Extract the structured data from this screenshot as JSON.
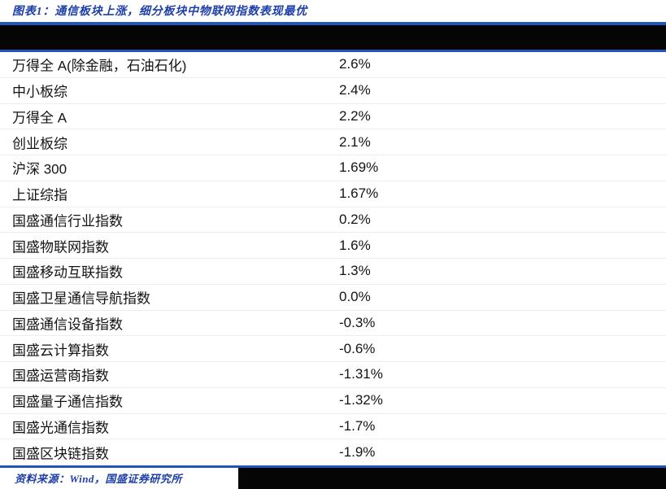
{
  "figure": {
    "title": "图表1：通信板块上涨，细分板块中物联网指数表现最优",
    "source": "资料来源：Wind，国盛证券研究所"
  },
  "table": {
    "rows": [
      {
        "name": "万得全 A(除金融，石油石化)",
        "value": "2.6%"
      },
      {
        "name": "中小板综",
        "value": "2.4%"
      },
      {
        "name": "万得全 A",
        "value": "2.2%"
      },
      {
        "name": "创业板综",
        "value": "2.1%"
      },
      {
        "name": "沪深 300",
        "value": "1.69%"
      },
      {
        "name": "上证综指",
        "value": "1.67%"
      },
      {
        "name": "国盛通信行业指数",
        "value": "0.2%"
      },
      {
        "name": "国盛物联网指数",
        "value": "1.6%"
      },
      {
        "name": "国盛移动互联指数",
        "value": "1.3%"
      },
      {
        "name": "国盛卫星通信导航指数",
        "value": "0.0%"
      },
      {
        "name": "国盛通信设备指数",
        "value": "-0.3%"
      },
      {
        "name": "国盛云计算指数",
        "value": "-0.6%"
      },
      {
        "name": "国盛运营商指数",
        "value": "-1.31%"
      },
      {
        "name": "国盛量子通信指数",
        "value": "-1.32%"
      },
      {
        "name": "国盛光通信指数",
        "value": "-1.7%"
      },
      {
        "name": "国盛区块链指数",
        "value": "-1.9%"
      }
    ]
  },
  "chart_data": {
    "type": "table",
    "title": "图表1：通信板块上涨，细分板块中物联网指数表现最优",
    "categories": [
      "万得全 A(除金融，石油石化)",
      "中小板综",
      "万得全 A",
      "创业板综",
      "沪深 300",
      "上证综指",
      "国盛通信行业指数",
      "国盛物联网指数",
      "国盛移动互联指数",
      "国盛卫星通信导航指数",
      "国盛通信设备指数",
      "国盛云计算指数",
      "国盛运营商指数",
      "国盛量子通信指数",
      "国盛光通信指数",
      "国盛区块链指数"
    ],
    "values": [
      2.6,
      2.4,
      2.2,
      2.1,
      1.69,
      1.67,
      0.2,
      1.6,
      1.3,
      0.0,
      -0.3,
      -0.6,
      -1.31,
      -1.32,
      -1.7,
      -1.9
    ],
    "unit": "%",
    "source": "资料来源：Wind，国盛证券研究所"
  },
  "colors": {
    "accent_blue": "#2155bd",
    "text_blue": "#1e3fa9",
    "band_black": "#050505",
    "body_text": "#141414",
    "row_separator": "#ededed"
  }
}
